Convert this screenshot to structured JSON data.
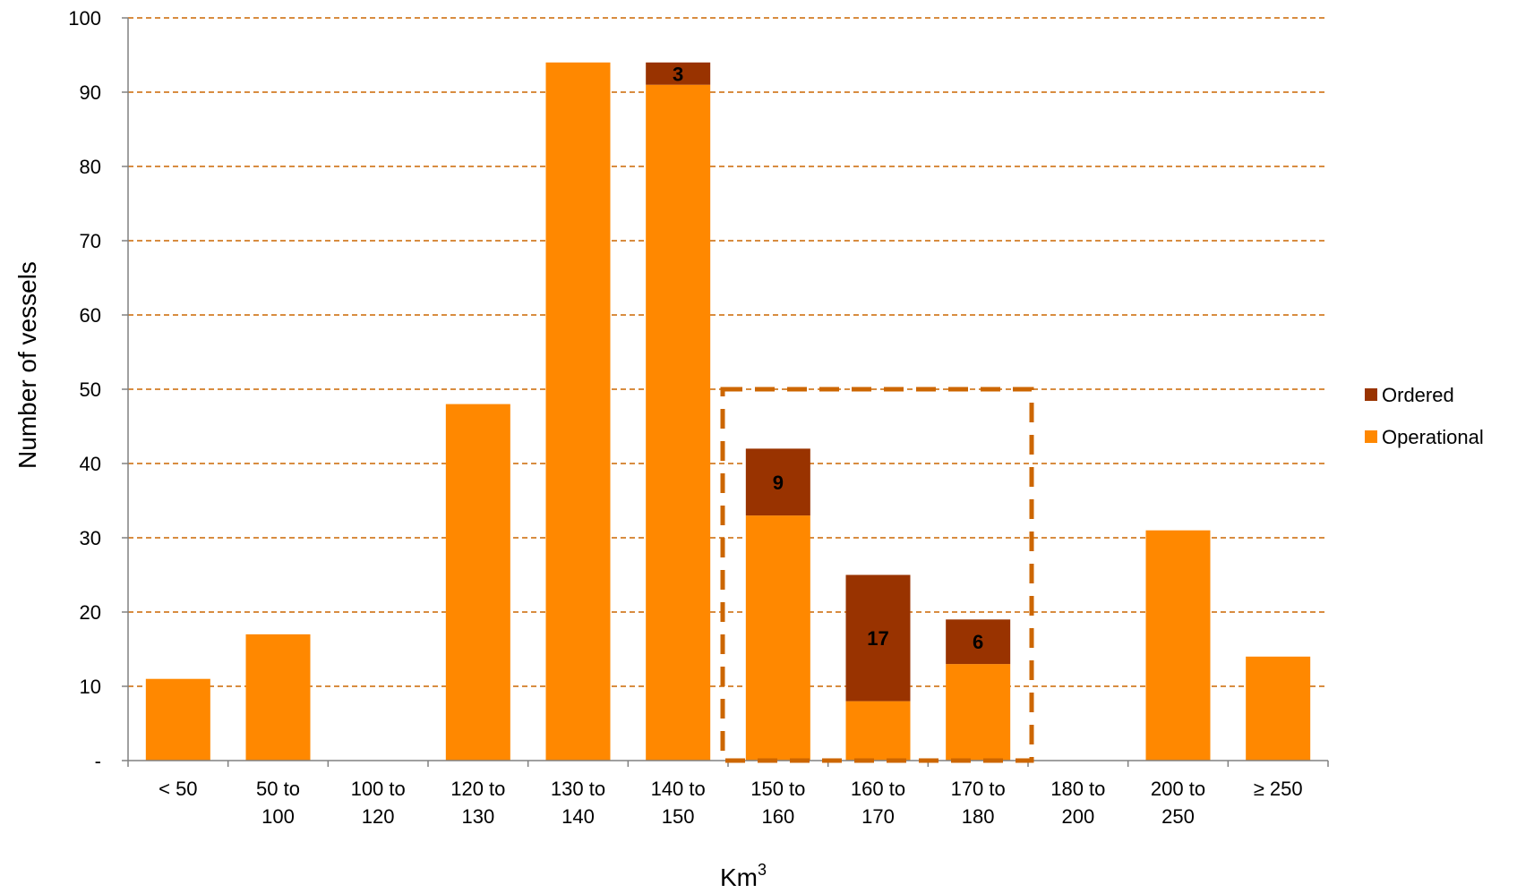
{
  "chart_data": {
    "type": "bar",
    "stacked": true,
    "categories": [
      [
        "< 50"
      ],
      [
        "50 to",
        "100"
      ],
      [
        "100 to",
        "120"
      ],
      [
        "120 to",
        "130"
      ],
      [
        "130 to",
        "140"
      ],
      [
        "140 to",
        "150"
      ],
      [
        "150 to",
        "160"
      ],
      [
        "160 to",
        "170"
      ],
      [
        "170 to",
        "180"
      ],
      [
        "180 to",
        "200"
      ],
      [
        "200 to",
        "250"
      ],
      [
        "≥ 250"
      ]
    ],
    "series": [
      {
        "name": "Operational",
        "color": "#FF8800",
        "values": [
          11,
          17,
          0,
          48,
          94,
          91,
          33,
          8,
          13,
          0,
          31,
          14
        ]
      },
      {
        "name": "Ordered",
        "color": "#993300",
        "values": [
          0,
          0,
          0,
          0,
          0,
          3,
          9,
          17,
          6,
          0,
          0,
          0
        ]
      }
    ],
    "data_labels": [
      {
        "category_index": 5,
        "series": "Ordered",
        "text": "3"
      },
      {
        "category_index": 6,
        "series": "Ordered",
        "text": "9"
      },
      {
        "category_index": 7,
        "series": "Ordered",
        "text": "17"
      },
      {
        "category_index": 8,
        "series": "Ordered",
        "text": "6"
      }
    ],
    "title": "",
    "xlabel": "Km",
    "xlabel_superscript": "3",
    "ylabel": "Number of vessels",
    "ylim": [
      0,
      100
    ],
    "yticks": [
      0,
      10,
      20,
      30,
      40,
      50,
      60,
      70,
      80,
      90,
      100
    ],
    "ytick_labels": [
      "-",
      "10",
      "20",
      "30",
      "40",
      "50",
      "60",
      "70",
      "80",
      "90",
      "100"
    ],
    "grid": true,
    "grid_style": "dashed",
    "grid_color": "#CC6600",
    "legend_position": "right",
    "legend_order": [
      "Ordered",
      "Operational"
    ],
    "highlight": {
      "from_category": 6,
      "to_category": 8,
      "ymax": 50,
      "color": "#CC6600",
      "style": "dashed"
    }
  }
}
